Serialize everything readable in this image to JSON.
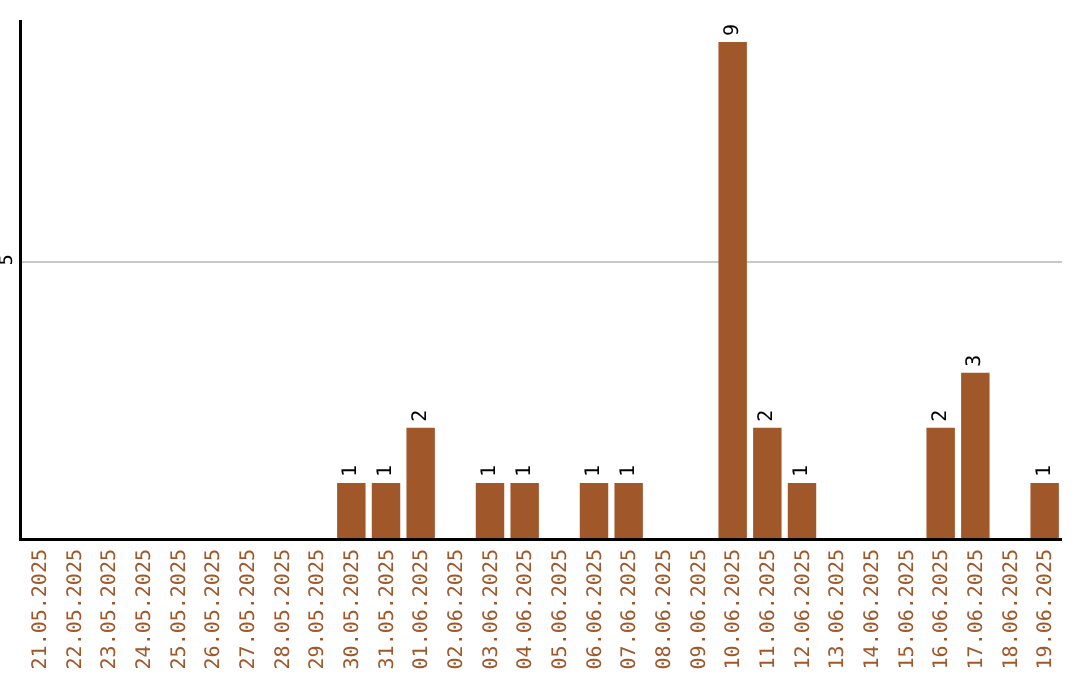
{
  "chart_data": {
    "type": "bar",
    "categories": [
      "21.05.2025",
      "22.05.2025",
      "23.05.2025",
      "24.05.2025",
      "25.05.2025",
      "26.05.2025",
      "27.05.2025",
      "28.05.2025",
      "29.05.2025",
      "30.05.2025",
      "31.05.2025",
      "01.06.2025",
      "02.06.2025",
      "03.06.2025",
      "04.06.2025",
      "05.06.2025",
      "06.06.2025",
      "07.06.2025",
      "08.06.2025",
      "09.06.2025",
      "10.06.2025",
      "11.06.2025",
      "12.06.2025",
      "13.06.2025",
      "14.06.2025",
      "15.06.2025",
      "16.06.2025",
      "17.06.2025",
      "18.06.2025",
      "19.06.2025"
    ],
    "values": [
      0,
      0,
      0,
      0,
      0,
      0,
      0,
      0,
      0,
      1,
      1,
      2,
      0,
      1,
      1,
      0,
      1,
      1,
      0,
      0,
      9,
      2,
      1,
      0,
      0,
      0,
      2,
      3,
      0,
      1
    ],
    "value_labels": [
      null,
      null,
      null,
      null,
      null,
      null,
      null,
      null,
      null,
      "1",
      "1",
      "2",
      null,
      "1",
      "1",
      null,
      "1",
      "1",
      null,
      null,
      "9",
      "2",
      "1",
      null,
      null,
      null,
      "2",
      "3",
      null,
      "1"
    ],
    "color": "#a0572a",
    "ylim": [
      0,
      9.4
    ],
    "yticks": [
      5
    ],
    "grid": "y"
  }
}
